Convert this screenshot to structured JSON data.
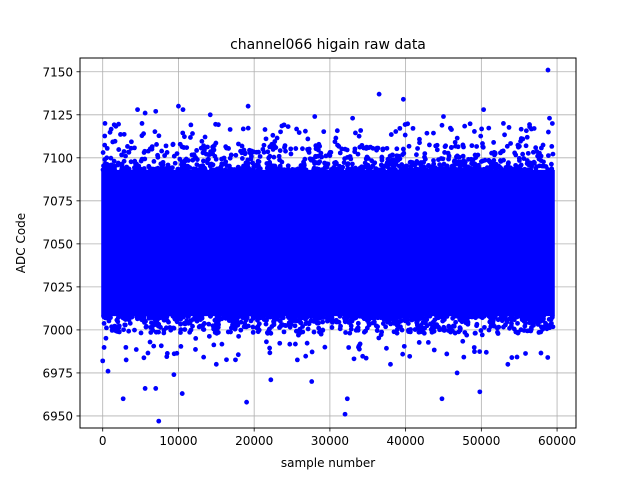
{
  "chart_data": {
    "type": "scatter",
    "title": "channel066 higain raw data",
    "xlabel": "sample number",
    "ylabel": "ADC Code",
    "xlim": [
      -3000,
      62500
    ],
    "ylim": [
      6943,
      7158
    ],
    "x_ticks": [
      0,
      10000,
      20000,
      30000,
      40000,
      50000,
      60000
    ],
    "x_tick_labels": [
      "0",
      "10000",
      "20000",
      "30000",
      "40000",
      "50000",
      "60000"
    ],
    "y_ticks": [
      6950,
      6975,
      7000,
      7025,
      7050,
      7075,
      7100,
      7125,
      7150
    ],
    "y_tick_labels": [
      "6950",
      "6975",
      "7000",
      "7025",
      "7050",
      "7075",
      "7100",
      "7125",
      "7150"
    ],
    "grid": true,
    "marker_color": "#0000ff",
    "band": {
      "x_range": [
        0,
        59500
      ],
      "core_y_range": [
        7008,
        7093
      ],
      "fringe_y_range": [
        6998,
        7108
      ],
      "note": "dense band of samples"
    },
    "outliers": [
      {
        "x": 58800,
        "y": 7151
      },
      {
        "x": 36500,
        "y": 7137
      },
      {
        "x": 39700,
        "y": 7134
      },
      {
        "x": 10000,
        "y": 7130
      },
      {
        "x": 19200,
        "y": 7130
      },
      {
        "x": 4600,
        "y": 7128
      },
      {
        "x": 10600,
        "y": 7128
      },
      {
        "x": 50300,
        "y": 7128
      },
      {
        "x": 7000,
        "y": 7127
      },
      {
        "x": 5600,
        "y": 7126
      },
      {
        "x": 14200,
        "y": 7125
      },
      {
        "x": 28000,
        "y": 7124
      },
      {
        "x": 45000,
        "y": 7124
      },
      {
        "x": 59000,
        "y": 7123
      },
      {
        "x": 33000,
        "y": 7123
      },
      {
        "x": 300,
        "y": 7120
      },
      {
        "x": 0,
        "y": 6982
      },
      {
        "x": 700,
        "y": 6976
      },
      {
        "x": 2700,
        "y": 6960
      },
      {
        "x": 5600,
        "y": 6966
      },
      {
        "x": 7000,
        "y": 6966
      },
      {
        "x": 7400,
        "y": 6947
      },
      {
        "x": 9400,
        "y": 6974
      },
      {
        "x": 10500,
        "y": 6963
      },
      {
        "x": 19000,
        "y": 6958
      },
      {
        "x": 22200,
        "y": 6971
      },
      {
        "x": 27600,
        "y": 6970
      },
      {
        "x": 32000,
        "y": 6951
      },
      {
        "x": 32300,
        "y": 6960
      },
      {
        "x": 44800,
        "y": 6960
      },
      {
        "x": 46800,
        "y": 6975
      },
      {
        "x": 49800,
        "y": 6964
      },
      {
        "x": 38000,
        "y": 6980
      },
      {
        "x": 15000,
        "y": 6980
      },
      {
        "x": 53500,
        "y": 6980
      }
    ]
  }
}
